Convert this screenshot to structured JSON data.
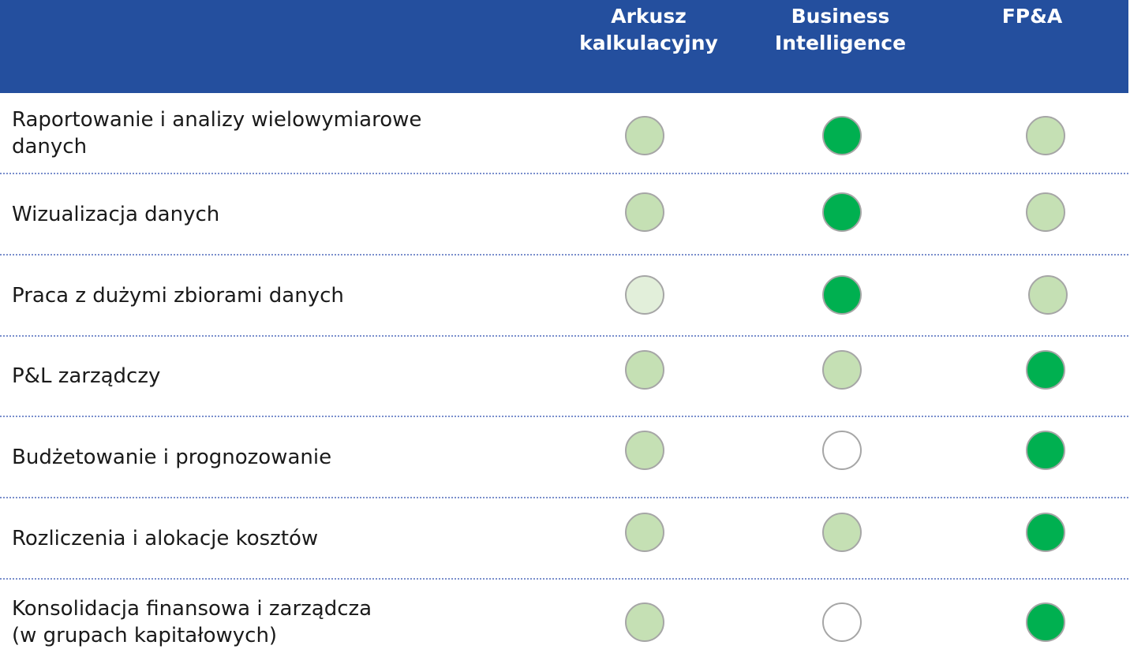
{
  "header": {
    "columns": [
      {
        "label": "Arkusz\nkalkulacyjny"
      },
      {
        "label": "Business\nIntelligence"
      },
      {
        "label": "FP&A"
      }
    ]
  },
  "legend_colors": {
    "full": "#00b050",
    "medium": "#c5e0b4",
    "low": "#e2efda",
    "none": "#ffffff"
  },
  "rows": [
    {
      "label": "Raportowanie i analizy wielowymiarowe\ndanych",
      "ratings": [
        "medium",
        "full",
        "medium"
      ]
    },
    {
      "label": "Wizualizacja danych",
      "ratings": [
        "medium",
        "full",
        "medium"
      ]
    },
    {
      "label": "Praca z dużymi zbiorami danych",
      "ratings": [
        "low",
        "full",
        "medium"
      ]
    },
    {
      "label": "P&L zarządczy",
      "ratings": [
        "medium",
        "medium",
        "full"
      ]
    },
    {
      "label": "Budżetowanie i prognozowanie",
      "ratings": [
        "medium",
        "none",
        "full"
      ]
    },
    {
      "label": "Rozliczenia i alokacje kosztów",
      "ratings": [
        "medium",
        "medium",
        "full"
      ]
    },
    {
      "label": "Konsolidacja finansowa i zarządcza\n(w grupach kapitałowych)",
      "ratings": [
        "medium",
        "none",
        "full"
      ]
    }
  ]
}
